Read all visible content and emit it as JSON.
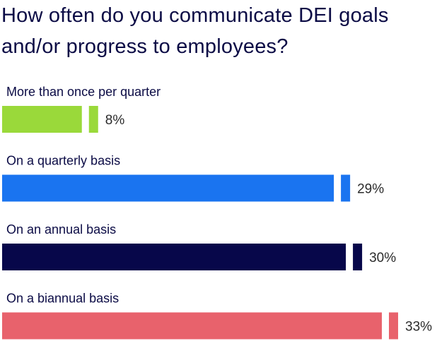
{
  "chart_data": {
    "type": "bar",
    "orientation": "horizontal",
    "title": "How often do you communicate DEI goals and/or progress to employees?",
    "categories": [
      "More than once per quarter",
      "On a quarterly basis",
      "On an annual basis",
      "On a biannual basis"
    ],
    "values": [
      8,
      29,
      30,
      33
    ],
    "value_labels": [
      "8%",
      "29%",
      "30%",
      "33%"
    ],
    "colors": [
      "#9ad93a",
      "#1a74f0",
      "#07074a",
      "#e8626c"
    ],
    "xlim": [
      0,
      33
    ],
    "grid": false,
    "legend": "none"
  }
}
